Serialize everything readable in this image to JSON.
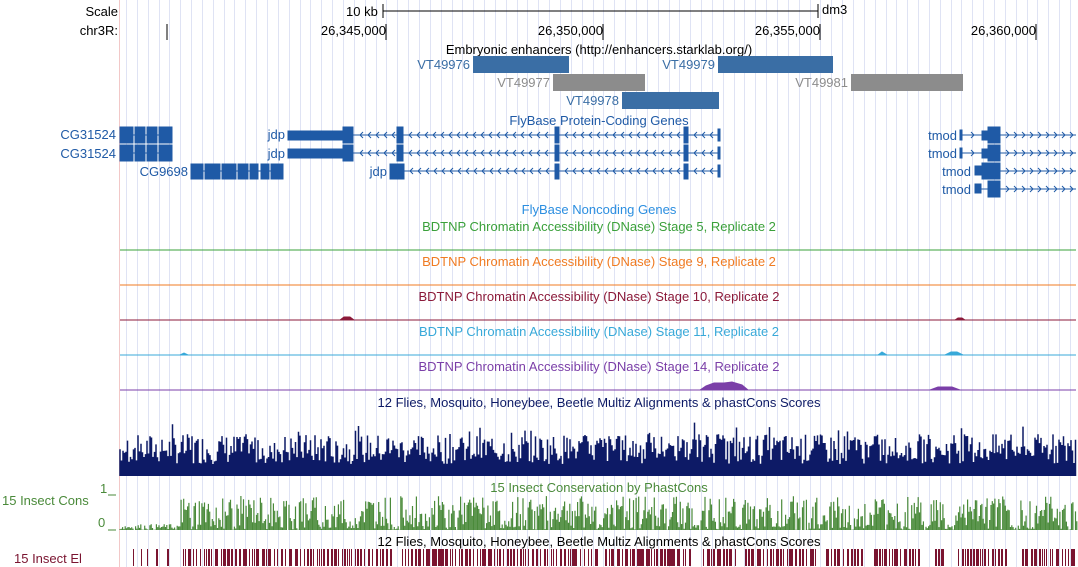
{
  "ruler": {
    "scale_label": "Scale",
    "chrom_label": "chr3R:",
    "scale_text": "10 kb",
    "assembly": "dm3",
    "positions": [
      "26,345,000",
      "26,350,000",
      "26,355,000",
      "26,360,000"
    ]
  },
  "tracks": {
    "enhancers": {
      "title": "Embryonic enhancers (http://enhancers.starklab.org/)",
      "items": [
        "VT49976",
        "VT49977",
        "VT49979",
        "VT49981",
        "VT49978"
      ],
      "color_primary": "#3a6ea5",
      "color_secondary": "#8c8c8c"
    },
    "genes": {
      "title": "FlyBase Protein-Coding Genes",
      "color": "#1f5aa6",
      "left_labels": [
        "CG31524",
        "CG31524",
        "CG9698"
      ],
      "jdp_labels": [
        "jdp",
        "jdp",
        "jdp"
      ],
      "tmod_labels": [
        "tmod",
        "tmod",
        "tmod",
        "tmod"
      ]
    },
    "noncoding": {
      "title": "FlyBase Noncoding Genes",
      "color": "#2b8ee0"
    },
    "dnase": [
      {
        "title": "BDTNP Chromatin Accessibility (DNase) Stage 5, Replicate 2",
        "color": "#3aa03a"
      },
      {
        "title": "BDTNP Chromatin Accessibility (DNase) Stage 9, Replicate 2",
        "color": "#f07b22"
      },
      {
        "title": "BDTNP Chromatin Accessibility (DNase) Stage 10, Replicate 2",
        "color": "#8b1a3a"
      },
      {
        "title": "BDTNP Chromatin Accessibility (DNase) Stage 11, Replicate 2",
        "color": "#38a9d9"
      },
      {
        "title": "BDTNP Chromatin Accessibility (DNase) Stage 14, Replicate 2",
        "color": "#7b3fa8"
      }
    ],
    "multiz": {
      "title": "12 Flies, Mosquito, Honeybee, Beetle Multiz Alignments & phastCons Scores",
      "color": "#0d1a66"
    },
    "cons": {
      "title": "15 Insect Conservation by PhastCons",
      "side_label": "15 Insect Cons",
      "ymax": "1",
      "ymin": "0",
      "color": "#4a8a3a"
    },
    "elements": {
      "title": "12 Flies, Mosquito, Honeybee, Beetle Multiz Alignments & phastCons Scores",
      "side_label": "15 Insect El",
      "color": "#7a1430"
    }
  }
}
